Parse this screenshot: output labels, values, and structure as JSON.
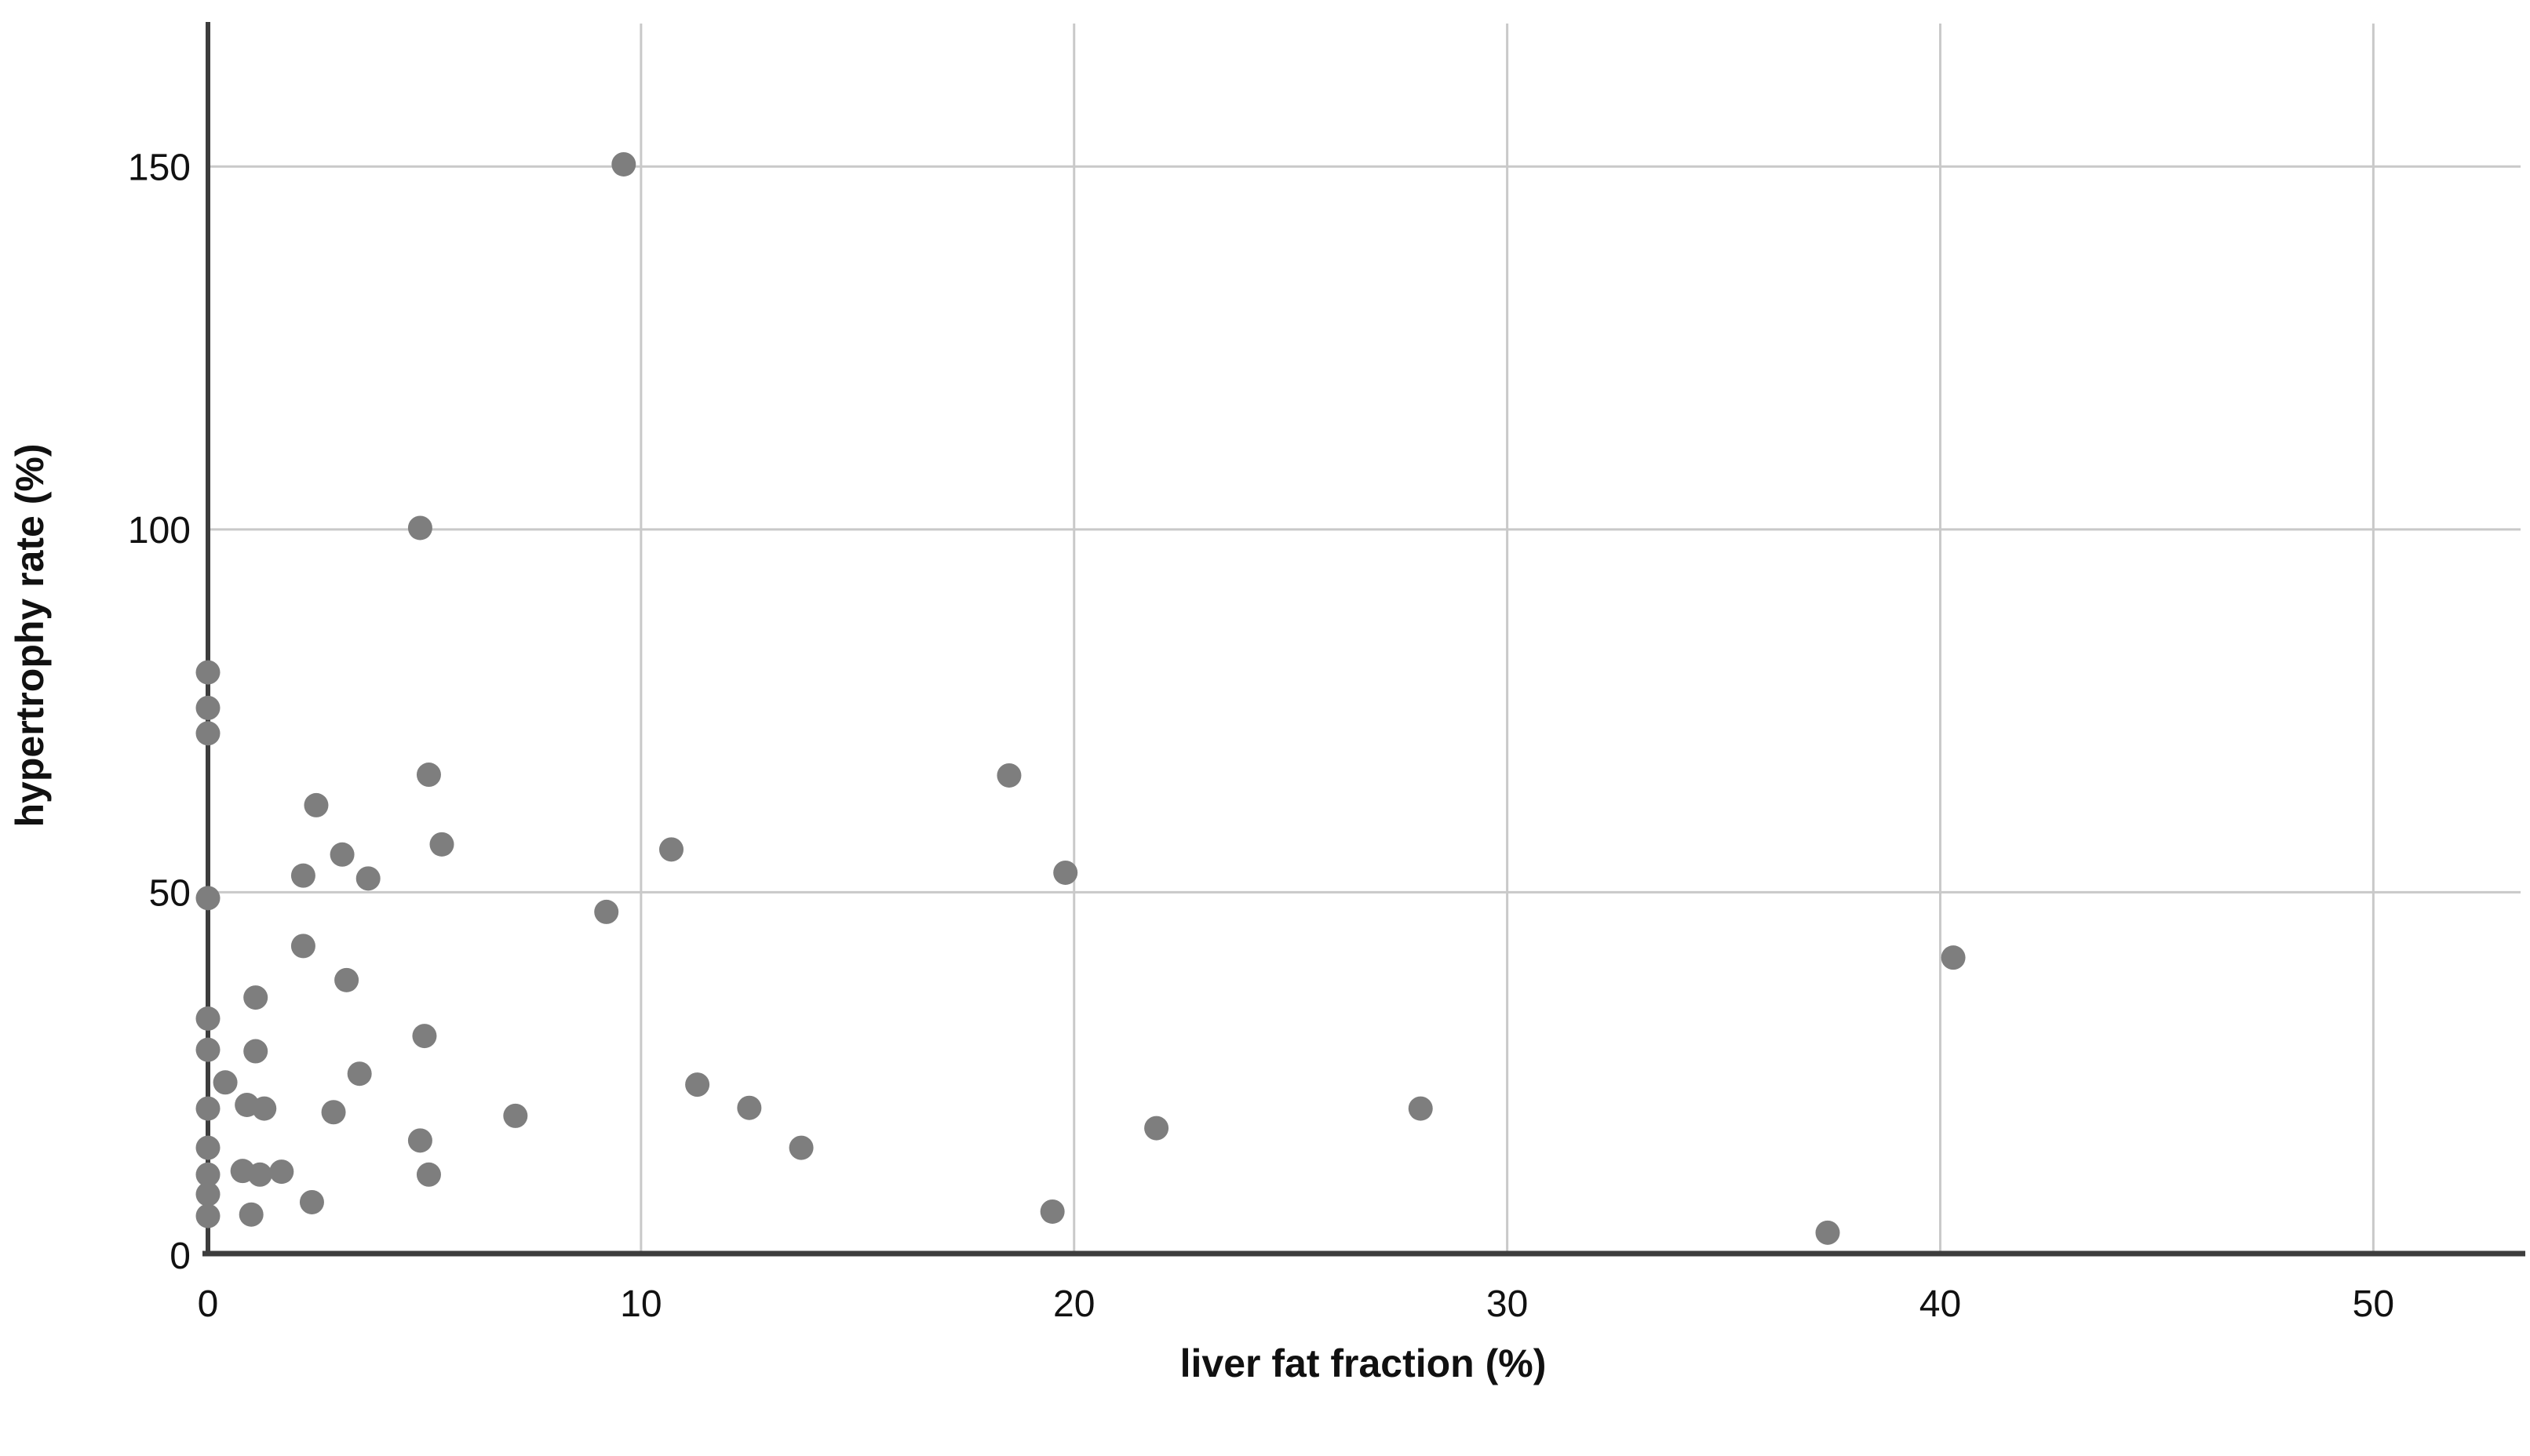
{
  "chart_data": {
    "type": "scatter",
    "title": "",
    "xlabel": "liver fat fraction (%)",
    "ylabel": "hypertrophy rate (%)",
    "x_ticks": [
      0,
      10,
      20,
      30,
      40,
      50
    ],
    "y_ticks": [
      0,
      50,
      100,
      150
    ],
    "xlim": [
      0,
      53.4
    ],
    "ylim": [
      0,
      169.7
    ],
    "grid": true,
    "legend": false,
    "marker_color": "#7e7e7e",
    "axis_line_color": "#3d3d3d",
    "gridline_color": "#c9c9c9",
    "background_color": "#ffffff",
    "points": [
      [
        0,
        80.3
      ],
      [
        0,
        75.4
      ],
      [
        0,
        71.9
      ],
      [
        0,
        49.2
      ],
      [
        0,
        32.6
      ],
      [
        0,
        28.3
      ],
      [
        0,
        20.2
      ],
      [
        0,
        14.8
      ],
      [
        0,
        11.1
      ],
      [
        0,
        8.4
      ],
      [
        0,
        5.4
      ],
      [
        0.4,
        23.8
      ],
      [
        0.8,
        11.6
      ],
      [
        0.9,
        20.7
      ],
      [
        1.0,
        5.6
      ],
      [
        1.1,
        35.5
      ],
      [
        1.1,
        28.1
      ],
      [
        1.2,
        11.1
      ],
      [
        1.3,
        20.2
      ],
      [
        1.7,
        11.5
      ],
      [
        2.2,
        52.3
      ],
      [
        2.2,
        42.6
      ],
      [
        2.4,
        7.3
      ],
      [
        2.5,
        62.0
      ],
      [
        2.9,
        19.7
      ],
      [
        3.1,
        55.2
      ],
      [
        3.2,
        37.9
      ],
      [
        3.5,
        25.0
      ],
      [
        3.7,
        51.9
      ],
      [
        4.9,
        100.2
      ],
      [
        4.9,
        15.8
      ],
      [
        5.0,
        30.2
      ],
      [
        5.1,
        66.2
      ],
      [
        5.1,
        11.1
      ],
      [
        5.4,
        56.6
      ],
      [
        7.1,
        19.2
      ],
      [
        9.2,
        47.3
      ],
      [
        9.6,
        150.3
      ],
      [
        10.7,
        55.9
      ],
      [
        11.3,
        23.5
      ],
      [
        12.5,
        20.3
      ],
      [
        13.7,
        14.8
      ],
      [
        18.5,
        66.1
      ],
      [
        19.5,
        6.0
      ],
      [
        19.8,
        52.7
      ],
      [
        21.9,
        17.5
      ],
      [
        28.0,
        20.2
      ],
      [
        37.4,
        3.1
      ],
      [
        40.3,
        41.0
      ]
    ]
  }
}
